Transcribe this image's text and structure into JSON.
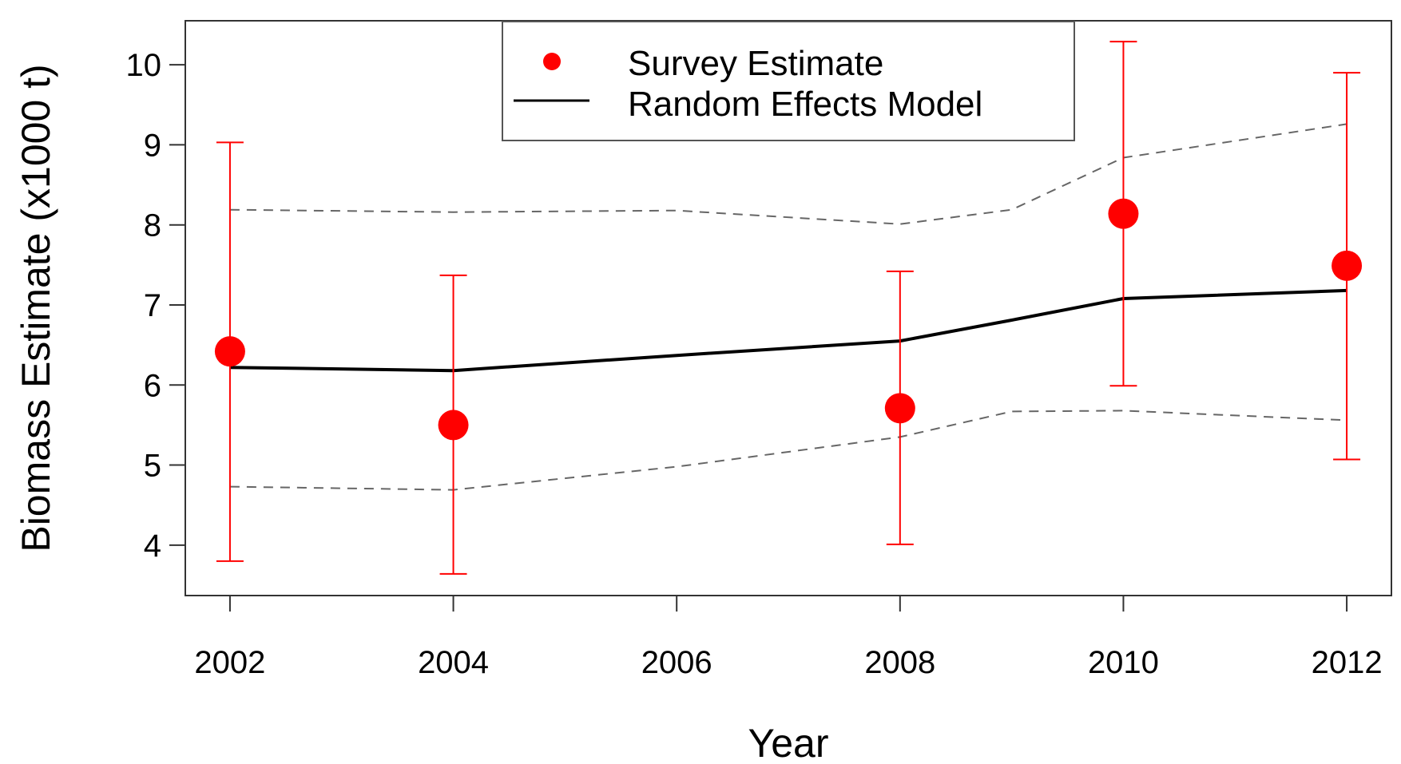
{
  "chart_data": {
    "type": "line",
    "title": "",
    "xlabel": "Year",
    "ylabel": "Biomass Estimate (x1000 t)",
    "xlim": [
      2001.6,
      2012.4
    ],
    "ylim": [
      3.37,
      10.55
    ],
    "x_ticks": [
      2002,
      2004,
      2006,
      2008,
      2010,
      2012
    ],
    "x_tick_labels": [
      "2002",
      "2004",
      "2006",
      "2008",
      "2010",
      "2012"
    ],
    "y_ticks": [
      4,
      5,
      6,
      7,
      8,
      9,
      10
    ],
    "y_tick_labels": [
      "4",
      "5",
      "6",
      "7",
      "8",
      "9",
      "10"
    ],
    "grid": false,
    "legend": {
      "position": "top-center",
      "entries": [
        {
          "label": "Survey Estimate",
          "marker": "circle",
          "color": "#ff0000"
        },
        {
          "label": "Random Effects Model",
          "marker": "line",
          "color": "#000000"
        }
      ]
    },
    "survey_estimate": {
      "color": "#ff0000",
      "points": [
        {
          "x": 2002,
          "y": 6.42,
          "lower": 3.8,
          "upper": 9.03
        },
        {
          "x": 2004,
          "y": 5.5,
          "lower": 3.64,
          "upper": 7.37
        },
        {
          "x": 2008,
          "y": 5.71,
          "lower": 4.01,
          "upper": 7.42
        },
        {
          "x": 2010,
          "y": 8.14,
          "lower": 5.99,
          "upper": 10.29
        },
        {
          "x": 2012,
          "y": 7.49,
          "lower": 5.07,
          "upper": 9.9
        }
      ]
    },
    "random_effects_model": {
      "color": "#000000",
      "x": [
        2002,
        2004,
        2006,
        2008,
        2009,
        2010,
        2012
      ],
      "y": [
        6.22,
        6.18,
        6.37,
        6.55,
        6.81,
        7.08,
        7.18
      ]
    },
    "model_upper_bound": {
      "color": "#666666",
      "x": [
        2002,
        2004,
        2006,
        2008,
        2009,
        2010,
        2012
      ],
      "y": [
        8.19,
        8.16,
        8.18,
        8.01,
        8.19,
        8.84,
        9.26
      ]
    },
    "model_lower_bound": {
      "color": "#666666",
      "x": [
        2002,
        2004,
        2006,
        2008,
        2009,
        2010,
        2012
      ],
      "y": [
        4.73,
        4.69,
        4.98,
        5.35,
        5.67,
        5.68,
        5.56
      ]
    }
  }
}
